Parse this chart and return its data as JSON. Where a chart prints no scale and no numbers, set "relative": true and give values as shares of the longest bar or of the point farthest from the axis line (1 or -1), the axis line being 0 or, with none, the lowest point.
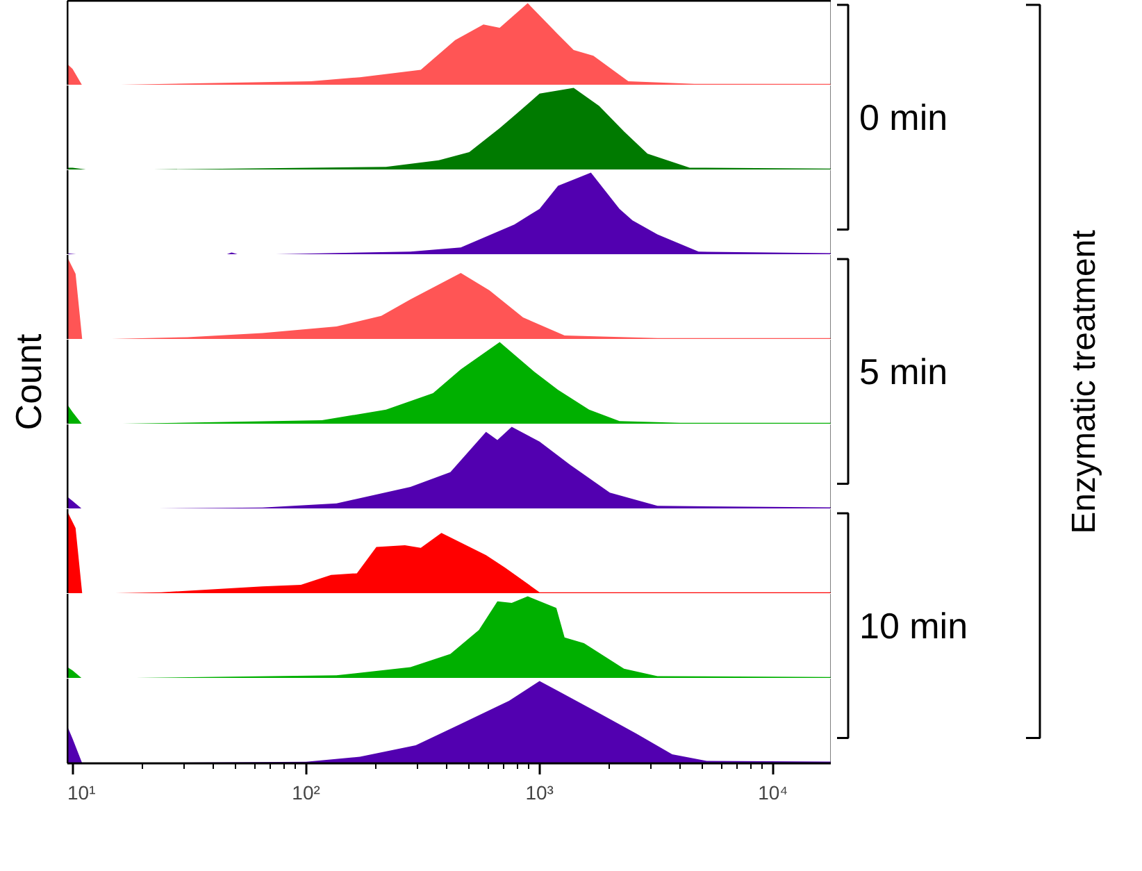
{
  "chart_data": [
    {
      "type": "area",
      "relative": true,
      "log": "x",
      "xlim": [
        9.5,
        17800
      ],
      "tick_labels": false,
      "x": [
        9.5,
        10,
        11,
        105,
        170,
        310,
        435,
        575,
        675,
        890,
        1200,
        1400,
        1700,
        2400,
        4600,
        17800
      ],
      "series": [
        {
          "color": "#ff5555",
          "values": [
            0.26,
            0.2,
            0,
            0.05,
            0.1,
            0.19,
            0.55,
            0.74,
            0.7,
            1,
            0.62,
            0.43,
            0.36,
            0.05,
            0.02,
            0.02
          ]
        }
      ]
    },
    {
      "type": "area",
      "relative": true,
      "log": "x",
      "xlim": [
        9.5,
        17800
      ],
      "tick_labels": false,
      "annotations": [
        "0 min"
      ],
      "x": [
        9.5,
        10,
        12,
        220,
        370,
        500,
        675,
        800,
        1000,
        1400,
        1800,
        2300,
        2900,
        4400,
        17800
      ],
      "series": [
        {
          "color": "#007a00",
          "values": [
            0.03,
            0.03,
            0,
            0.04,
            0.12,
            0.22,
            0.51,
            0.69,
            0.93,
            1,
            0.78,
            0.47,
            0.2,
            0.03,
            0.02
          ]
        }
      ]
    },
    {
      "type": "area",
      "relative": true,
      "log": "x",
      "xlim": [
        9.5,
        17800
      ],
      "tick_labels": false,
      "x": [
        9.5,
        11,
        45,
        48,
        52,
        280,
        460,
        780,
        1000,
        1200,
        1660,
        2200,
        2500,
        3200,
        4800,
        17800
      ],
      "series": [
        {
          "color": "#5200b0",
          "values": [
            0.02,
            0,
            0,
            0.03,
            0,
            0.04,
            0.09,
            0.37,
            0.56,
            0.84,
            1,
            0.56,
            0.42,
            0.25,
            0.04,
            0.02
          ]
        }
      ]
    },
    {
      "type": "area",
      "relative": true,
      "log": "x",
      "xlim": [
        9.5,
        17800
      ],
      "tick_labels": false,
      "x": [
        9.5,
        10.3,
        11,
        31,
        65,
        135,
        210,
        280,
        460,
        610,
        850,
        1280,
        3200,
        17800
      ],
      "series": [
        {
          "color": "#ff5555",
          "values": [
            1,
            0.8,
            0,
            0.03,
            0.08,
            0.16,
            0.29,
            0.49,
            0.81,
            0.6,
            0.27,
            0.05,
            0.02,
            0.02
          ]
        }
      ]
    },
    {
      "type": "area",
      "relative": true,
      "log": "x",
      "xlim": [
        9.5,
        17800
      ],
      "ylabel": "Count",
      "y2label": "Enzymatic treatment",
      "tick_labels": false,
      "annotations": [
        "5 min"
      ],
      "x": [
        9.5,
        10,
        11,
        117,
        220,
        350,
        460,
        675,
        950,
        1200,
        1630,
        2200,
        4000,
        17800
      ],
      "series": [
        {
          "color": "#00b000",
          "values": [
            0.24,
            0.15,
            0,
            0.05,
            0.18,
            0.38,
            0.67,
            1,
            0.64,
            0.42,
            0.18,
            0.04,
            0.02,
            0.02
          ]
        }
      ]
    },
    {
      "type": "area",
      "relative": true,
      "log": "x",
      "xlim": [
        9.5,
        17800
      ],
      "tick_labels": false,
      "x": [
        9.5,
        10,
        11,
        65,
        135,
        280,
        415,
        590,
        660,
        760,
        1000,
        1350,
        2000,
        3200,
        17800
      ],
      "series": [
        {
          "color": "#5200b0",
          "values": [
            0.15,
            0.1,
            0,
            0.02,
            0.07,
            0.27,
            0.45,
            0.94,
            0.84,
            1,
            0.82,
            0.54,
            0.2,
            0.04,
            0.02
          ]
        }
      ]
    },
    {
      "type": "area",
      "relative": true,
      "log": "x",
      "xlim": [
        9.5,
        17800
      ],
      "tick_labels": false,
      "x": [
        9.5,
        10.3,
        11,
        24,
        65,
        95,
        128,
        165,
        200,
        265,
        310,
        380,
        590,
        710,
        1000,
        2300,
        17800
      ],
      "series": [
        {
          "color": "#ff0000",
          "values": [
            1,
            0.8,
            0,
            0.02,
            0.09,
            0.11,
            0.23,
            0.25,
            0.57,
            0.59,
            0.56,
            0.74,
            0.47,
            0.32,
            0.02,
            0.02,
            0.02
          ]
        }
      ]
    },
    {
      "type": "area",
      "relative": true,
      "log": "x",
      "xlim": [
        9.5,
        17800
      ],
      "tick_labels": false,
      "annotations": [
        "10 min"
      ],
      "x": [
        9.5,
        10,
        11,
        135,
        280,
        415,
        550,
        660,
        760,
        890,
        1180,
        1280,
        1550,
        2300,
        3200,
        17800
      ],
      "series": [
        {
          "color": "#00b000",
          "values": [
            0.14,
            0.1,
            0,
            0.04,
            0.14,
            0.3,
            0.59,
            0.94,
            0.92,
            1,
            0.86,
            0.5,
            0.43,
            0.12,
            0.03,
            0.02
          ]
        }
      ]
    },
    {
      "type": "area",
      "relative": true,
      "log": "x",
      "xlim": [
        9.5,
        17800
      ],
      "xticks": [
        {
          "value": 10,
          "label": "10¹"
        },
        {
          "value": 20,
          "label": null
        },
        {
          "value": 30,
          "label": null
        },
        {
          "value": 40,
          "label": null
        },
        {
          "value": 50,
          "label": null
        },
        {
          "value": 60,
          "label": null
        },
        {
          "value": 70,
          "label": null
        },
        {
          "value": 80,
          "label": null
        },
        {
          "value": 90,
          "label": null
        },
        {
          "value": 100,
          "label": "10²"
        },
        {
          "value": 200,
          "label": null
        },
        {
          "value": 300,
          "label": null
        },
        {
          "value": 400,
          "label": null
        },
        {
          "value": 500,
          "label": null
        },
        {
          "value": 600,
          "label": null
        },
        {
          "value": 700,
          "label": null
        },
        {
          "value": 800,
          "label": null
        },
        {
          "value": 900,
          "label": null
        },
        {
          "value": 1000,
          "label": "10³"
        },
        {
          "value": 2000,
          "label": null
        },
        {
          "value": 3000,
          "label": null
        },
        {
          "value": 4000,
          "label": null
        },
        {
          "value": 5000,
          "label": null
        },
        {
          "value": 6000,
          "label": null
        },
        {
          "value": 7000,
          "label": null
        },
        {
          "value": 8000,
          "label": null
        },
        {
          "value": 9000,
          "label": null
        },
        {
          "value": 10000,
          "label": "10⁴"
        }
      ],
      "x": [
        9.5,
        10,
        11,
        100,
        170,
        295,
        460,
        740,
        1000,
        1200,
        1800,
        2600,
        3700,
        5200,
        17800
      ],
      "series": [
        {
          "color": "#5200b0",
          "values": [
            0.45,
            0.3,
            0,
            0.02,
            0.08,
            0.22,
            0.48,
            0.76,
            1,
            0.88,
            0.61,
            0.36,
            0.11,
            0.03,
            0.02
          ]
        }
      ]
    }
  ]
}
